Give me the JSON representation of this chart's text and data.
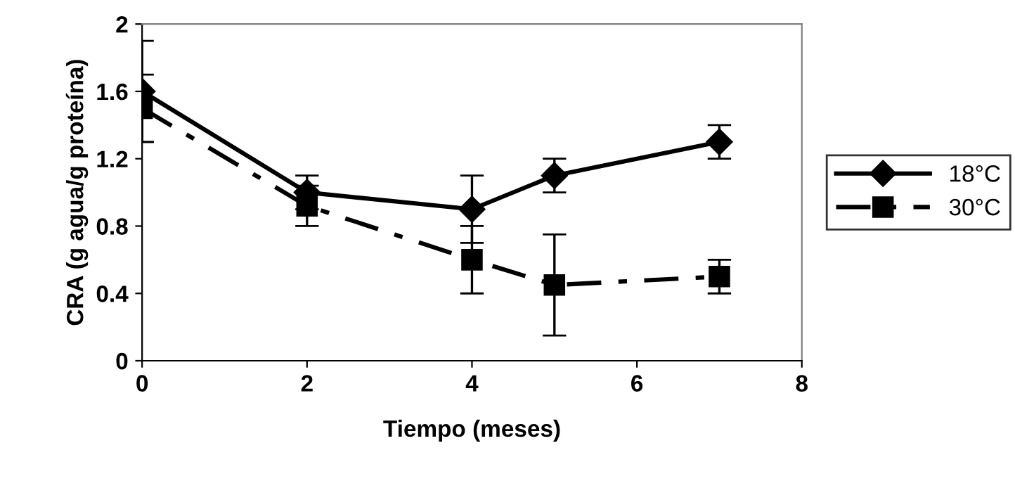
{
  "chart_data": {
    "type": "line",
    "xlabel": "Tiempo (meses)",
    "ylabel": "CRA (g agua/g proteína)",
    "x": [
      0,
      2,
      4,
      5,
      7
    ],
    "xlim": [
      0,
      8
    ],
    "xticks": [
      0,
      2,
      4,
      6,
      8
    ],
    "ylim": [
      0,
      2
    ],
    "yticks": [
      0,
      {
        "value": 0.4,
        "label": "0.4"
      },
      {
        "value": 0.8,
        "label": "0.8"
      },
      {
        "value": 1.2,
        "label": "1.2"
      },
      {
        "value": 1.6,
        "label": "1.6"
      },
      2
    ],
    "grid": false,
    "legend": "right",
    "series": [
      {
        "name": "18°C",
        "color": "#000000",
        "values": [
          1.6,
          1.0,
          0.9,
          1.1,
          1.3
        ],
        "errors": [
          0.3,
          0.1,
          0.2,
          0.1,
          0.1
        ],
        "marker": "diamond",
        "line_style": "solid"
      },
      {
        "name": "30°C",
        "color": "#000000",
        "values": [
          1.5,
          0.92,
          0.6,
          0.45,
          0.5
        ],
        "errors": [
          0.2,
          0.12,
          0.2,
          0.3,
          0.1
        ],
        "marker": "square",
        "line_style": "dashdot"
      }
    ]
  }
}
